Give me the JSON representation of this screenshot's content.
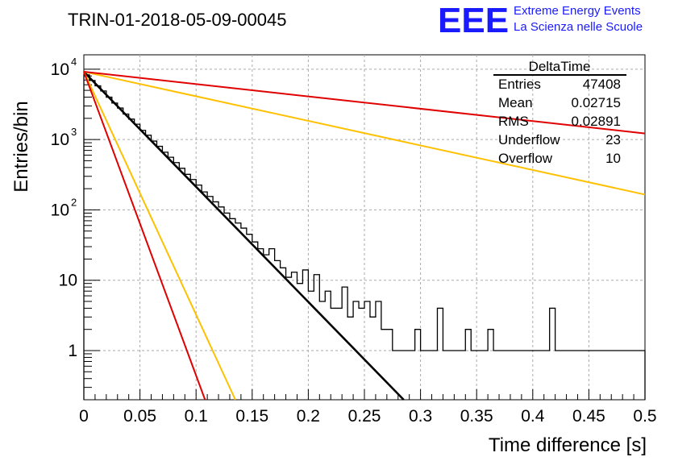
{
  "page": {
    "title": "TRIN-01-2018-05-09-00045",
    "logo": {
      "mark": "EEE",
      "line1": "Extreme Energy Events",
      "line2": "La Scienza nelle Scuole"
    }
  },
  "stats_box": {
    "title": "DeltaTime",
    "rows": [
      {
        "label": "Entries",
        "value": "47408"
      },
      {
        "label": "Mean",
        "value": "0.02715"
      },
      {
        "label": "RMS",
        "value": "0.02891"
      },
      {
        "label": "Underflow",
        "value": "23"
      },
      {
        "label": "Overflow",
        "value": "10"
      }
    ]
  },
  "chart_data": {
    "type": "line",
    "title": "TRIN-01-2018-05-09-00045",
    "xlabel": "Time difference [s]",
    "ylabel": "Entries/bin",
    "xlim": [
      0,
      0.5
    ],
    "ylim": [
      0.2,
      16000
    ],
    "y_scale": "log",
    "grid": true,
    "x_ticks": [
      "0",
      "0.05",
      "0.1",
      "0.15",
      "0.2",
      "0.25",
      "0.3",
      "0.35",
      "0.4",
      "0.45",
      "0.5"
    ],
    "y_ticks": [
      {
        "value": 1,
        "base": "1",
        "exp": ""
      },
      {
        "value": 10,
        "base": "10",
        "exp": ""
      },
      {
        "value": 100,
        "base": "10",
        "exp": "2"
      },
      {
        "value": 1000,
        "base": "10",
        "exp": "3"
      },
      {
        "value": 10000,
        "base": "10",
        "exp": "4"
      }
    ],
    "histogram": {
      "bin_width": 0.005,
      "counts": [
        8300,
        6900,
        5800,
        4900,
        4000,
        3300,
        2800,
        2300,
        1950,
        1650,
        1350,
        1150,
        950,
        800,
        660,
        560,
        470,
        390,
        320,
        270,
        225,
        180,
        155,
        130,
        110,
        90,
        75,
        65,
        55,
        45,
        35,
        28,
        23,
        28,
        19,
        15,
        11,
        13,
        9,
        14,
        7,
        12,
        5,
        7,
        4,
        4,
        8,
        3,
        5,
        4,
        5,
        3,
        5,
        2,
        2,
        1,
        1,
        1,
        1,
        2,
        1,
        1,
        1,
        4,
        1,
        1,
        1,
        1,
        2,
        1,
        1,
        1,
        2,
        1,
        1,
        1,
        1,
        1,
        1,
        1,
        1,
        1,
        1,
        4,
        1,
        1,
        1,
        1,
        1,
        1,
        1,
        1,
        1,
        1,
        1,
        1,
        1,
        1,
        1,
        1
      ]
    },
    "series": [
      {
        "color": "#000000",
        "points": [
          [
            0,
            9200
          ],
          [
            0.285,
            0.2
          ]
        ]
      },
      {
        "color": "#ffc000",
        "points": [
          [
            0,
            9200
          ],
          [
            0.5,
            165
          ]
        ]
      },
      {
        "color": "#ffc000",
        "points": [
          [
            0,
            9200
          ],
          [
            0.135,
            0.2
          ]
        ]
      },
      {
        "color": "#e00000",
        "points": [
          [
            0,
            9200
          ],
          [
            0.5,
            1220
          ]
        ]
      },
      {
        "color": "#e00000",
        "points": [
          [
            0,
            9200
          ],
          [
            0.108,
            0.2
          ]
        ]
      }
    ]
  }
}
